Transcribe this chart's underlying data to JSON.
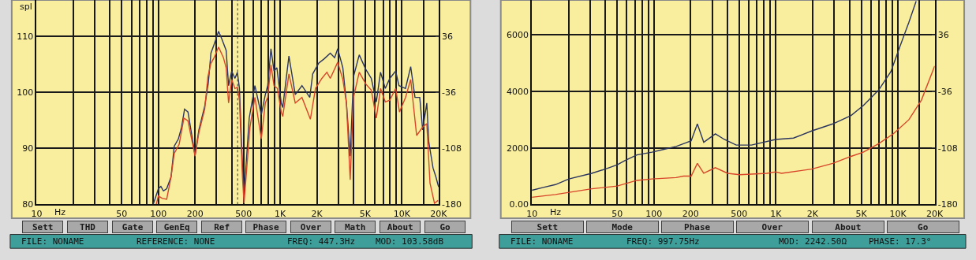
{
  "chart_data": [
    {
      "type": "line",
      "xlabel": "Hz",
      "ylabel": "spl",
      "log": "x",
      "grid": true,
      "marker": "none",
      "line_style": "solid",
      "xlim": [
        10,
        20000
      ],
      "xticks": [
        {
          "value": 10,
          "label": "10"
        },
        {
          "value": 20,
          "label": null
        },
        {
          "value": 30,
          "label": null
        },
        {
          "value": 40,
          "label": null
        },
        {
          "value": 50,
          "label": "50"
        },
        {
          "value": 60,
          "label": null
        },
        {
          "value": 70,
          "label": null
        },
        {
          "value": 80,
          "label": null
        },
        {
          "value": 90,
          "label": null
        },
        {
          "value": 100,
          "label": "100"
        },
        {
          "value": 200,
          "label": "200"
        },
        {
          "value": 300,
          "label": null
        },
        {
          "value": 400,
          "label": null
        },
        {
          "value": 500,
          "label": "500"
        },
        {
          "value": 600,
          "label": null
        },
        {
          "value": 700,
          "label": null
        },
        {
          "value": 800,
          "label": null
        },
        {
          "value": 900,
          "label": null
        },
        {
          "value": 1000,
          "label": "1K"
        },
        {
          "value": 2000,
          "label": "2K"
        },
        {
          "value": 3000,
          "label": null
        },
        {
          "value": 4000,
          "label": null
        },
        {
          "value": 5000,
          "label": "5K"
        },
        {
          "value": 6000,
          "label": null
        },
        {
          "value": 7000,
          "label": null
        },
        {
          "value": 8000,
          "label": null
        },
        {
          "value": 9000,
          "label": null
        },
        {
          "value": 10000,
          "label": "10K"
        },
        {
          "value": 15000,
          "label": null
        },
        {
          "value": 20000,
          "label": "20K"
        }
      ],
      "ylim": [
        80,
        116.5
      ],
      "yticks": [
        80,
        90,
        100,
        110
      ],
      "y2lim": [
        -180,
        82.6
      ],
      "y2ticks": [
        -180,
        -108,
        -36,
        36
      ],
      "ref_lines": [
        {
          "axis": "x",
          "value": 447.3,
          "label": null,
          "color": "#333333",
          "line_style": "dotted"
        }
      ],
      "series": [
        {
          "color": "#2b3560",
          "x": [
            90.7,
            100,
            104.8,
            110,
            117,
            127,
            135,
            146,
            155,
            164,
            175,
            200,
            215,
            240,
            257,
            270,
            287,
            312,
            331,
            360,
            377,
            400,
            425,
            445,
            463,
            490,
            505,
            525,
            557,
            620,
            700,
            755,
            790,
            840,
            890,
            940,
            1020,
            1050,
            1180,
            1330,
            1510,
            1750,
            1850,
            2070,
            2300,
            2580,
            2800,
            2970,
            3270,
            3500,
            3760,
            4000,
            4460,
            5050,
            5600,
            6160,
            6670,
            7300,
            7950,
            8880,
            9450,
            10700,
            11800,
            12800,
            14000,
            14800,
            16000,
            16600,
            18000,
            19000,
            20000
          ],
          "values": [
            80,
            82.8,
            83.2,
            82.4,
            82.8,
            84.9,
            90.4,
            91.7,
            93.8,
            97.0,
            96.5,
            88.8,
            93.3,
            97.5,
            101.7,
            107.0,
            108.6,
            110.9,
            109.6,
            107.5,
            101.2,
            103.8,
            102.5,
            103.6,
            100.7,
            87.0,
            81.7,
            87.0,
            95.4,
            101.2,
            96.0,
            99.6,
            101.2,
            107.8,
            103.8,
            104.4,
            98.1,
            97.3,
            106.5,
            99.6,
            101.2,
            99.1,
            103.3,
            105.2,
            106.0,
            107.0,
            106.2,
            107.8,
            104.4,
            98.1,
            88.6,
            102.8,
            106.7,
            104.1,
            102.5,
            98.3,
            103.6,
            100.7,
            102.5,
            103.8,
            101.2,
            100.7,
            104.6,
            99.1,
            99.1,
            93.3,
            98.1,
            91.2,
            86.5,
            84.9,
            83.1
          ]
        },
        {
          "color": "#d8452a",
          "x": [
            96,
            100,
            107,
            117,
            127,
            135,
            148,
            162,
            175,
            200,
            215,
            240,
            255,
            270,
            287,
            312,
            342,
            360,
            377,
            400,
            425,
            445,
            463,
            490,
            505,
            525,
            565,
            620,
            700,
            755,
            790,
            840,
            890,
            950,
            1020,
            1050,
            1180,
            1330,
            1510,
            1770,
            1950,
            2200,
            2420,
            2580,
            2970,
            3270,
            3500,
            3760,
            4000,
            4460,
            5050,
            5600,
            6160,
            6670,
            7300,
            7950,
            8880,
            9550,
            10700,
            11800,
            13200,
            14800,
            16000,
            17000,
            18500,
            19800
          ],
          "values": [
            80,
            81.5,
            81.1,
            80.9,
            84.9,
            89.1,
            90.7,
            95.4,
            94.9,
            88.6,
            92.8,
            97.0,
            102.8,
            105.2,
            106.2,
            108.1,
            106.2,
            104.4,
            98.1,
            102.3,
            100.7,
            100.9,
            98.6,
            84.9,
            80.2,
            84.9,
            93.8,
            99.1,
            91.7,
            98.1,
            99.1,
            104.9,
            101.2,
            100.7,
            96.5,
            95.7,
            103.3,
            98.1,
            99.1,
            95.2,
            100.7,
            102.5,
            103.6,
            102.5,
            105.4,
            102.3,
            98.1,
            84.4,
            99.1,
            103.6,
            101.5,
            100.4,
            95.4,
            100.7,
            98.3,
            98.6,
            100.7,
            96.5,
            99.1,
            102.3,
            92.3,
            93.8,
            94.4,
            83.8,
            80.2,
            80.7
          ]
        }
      ],
      "annotations": [
        "Sett",
        "THD",
        "Gate",
        "GenEq",
        "Ref",
        "Phase",
        "Over",
        "Math",
        "About",
        "Go",
        "FILE: NONAME",
        "REFERENCE: NONE",
        "FREQ: 447.3Hz",
        "MOD: 103.58dB"
      ]
    },
    {
      "type": "line",
      "xlabel": "Hz",
      "log": "x",
      "grid": true,
      "marker": "none",
      "line_style": "solid",
      "xlim": [
        10,
        20000
      ],
      "xticks": [
        {
          "value": 10,
          "label": "10"
        },
        {
          "value": 20,
          "label": null
        },
        {
          "value": 30,
          "label": null
        },
        {
          "value": 40,
          "label": null
        },
        {
          "value": 50,
          "label": "50"
        },
        {
          "value": 60,
          "label": null
        },
        {
          "value": 70,
          "label": null
        },
        {
          "value": 80,
          "label": null
        },
        {
          "value": 90,
          "label": null
        },
        {
          "value": 100,
          "label": "100"
        },
        {
          "value": 200,
          "label": "200"
        },
        {
          "value": 300,
          "label": null
        },
        {
          "value": 400,
          "label": null
        },
        {
          "value": 500,
          "label": "500"
        },
        {
          "value": 600,
          "label": null
        },
        {
          "value": 700,
          "label": null
        },
        {
          "value": 800,
          "label": null
        },
        {
          "value": 900,
          "label": null
        },
        {
          "value": 1000,
          "label": "1K"
        },
        {
          "value": 2000,
          "label": "2K"
        },
        {
          "value": 3000,
          "label": null
        },
        {
          "value": 4000,
          "label": null
        },
        {
          "value": 5000,
          "label": "5K"
        },
        {
          "value": 6000,
          "label": null
        },
        {
          "value": 7000,
          "label": null
        },
        {
          "value": 8000,
          "label": null
        },
        {
          "value": 9000,
          "label": null
        },
        {
          "value": 10000,
          "label": "10K"
        },
        {
          "value": 15000,
          "label": null
        },
        {
          "value": 20000,
          "label": "20K"
        }
      ],
      "ylim": [
        0,
        7240
      ],
      "yticks": [
        {
          "value": 0,
          "label": "0.00"
        },
        2000,
        4000,
        6000
      ],
      "y2lim": [
        -180,
        80.8
      ],
      "y2ticks": [
        -180,
        -108,
        -36,
        36
      ],
      "series": [
        {
          "color": "#2b3560",
          "x": [
            10,
            12.4,
            15.6,
            20.1,
            30.9,
            39.9,
            50.1,
            57.7,
            72.5,
            96.5,
            121,
            152,
            175,
            202,
            227,
            256,
            319,
            378,
            473,
            630,
            994,
            1394,
            1960,
            2920,
            4130,
            5200,
            6950,
            8750,
            10300,
            12300,
            14100
          ],
          "values": [
            500,
            600,
            700,
            900,
            1100,
            1250,
            1400,
            1550,
            1750,
            1850,
            1950,
            2050,
            2150,
            2250,
            2850,
            2200,
            2500,
            2300,
            2100,
            2100,
            2300,
            2350,
            2600,
            2850,
            3150,
            3500,
            4050,
            4700,
            5550,
            6450,
            7200
          ]
        },
        {
          "color": "#d8452a",
          "x": [
            10,
            15.6,
            30.9,
            50.1,
            72.5,
            96.5,
            152,
            175,
            202,
            227,
            256,
            319,
            402,
            504,
            843,
            994,
            1112,
            1960,
            2920,
            4130,
            5200,
            6950,
            9180,
            12300,
            15600,
            20000
          ],
          "values": [
            250,
            350,
            550,
            650,
            850,
            900,
            950,
            1000,
            1000,
            1450,
            1100,
            1300,
            1100,
            1050,
            1100,
            1150,
            1100,
            1250,
            1450,
            1700,
            1850,
            2150,
            2500,
            3000,
            3700,
            4900
          ]
        }
      ],
      "annotations": [
        "Sett",
        "Mode",
        "Phase",
        "Over",
        "About",
        "Go",
        "FILE: NONAME",
        "FREQ: 997.75Hz",
        "MOD: 2242.50Ω",
        "PHASE: 17.3°"
      ]
    }
  ]
}
